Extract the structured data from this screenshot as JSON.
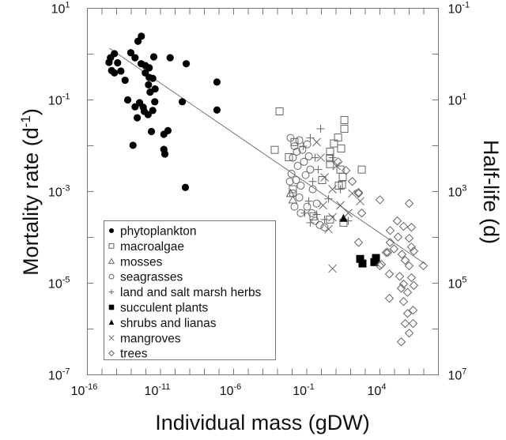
{
  "chart_data": {
    "type": "scatter",
    "xscale": "log10",
    "yscale": "log10",
    "note": "points given as [log10(mass gDW), log10(mortality d^-1)]",
    "xlabel": "Individual mass (gDW)",
    "ylabel": {
      "pre": "Mortality rate (d",
      "sup": "-1",
      "post": ")"
    },
    "y2label": "Half-life (d)",
    "xlim_log10": [
      -16,
      8
    ],
    "ylim_log10": [
      -7,
      1
    ],
    "x_tick_base": "10",
    "x_tick_exponents": [
      "-16",
      "-11",
      "-6",
      "-1",
      "4"
    ],
    "y_tick_exponents": [
      "1",
      "-1",
      "-3",
      "-5",
      "-7"
    ],
    "y2_tick_exponents": [
      "-1",
      "1",
      "3",
      "5",
      "7"
    ],
    "regression_line_log10": [
      [
        -14.5,
        0.13
      ],
      [
        7.14,
        -4.59
      ]
    ],
    "legend_position": "bottom-left",
    "series": [
      {
        "name": "phytoplankton",
        "marker": "filled-circle",
        "points": [
          [
            -12.31,
            0.39
          ],
          [
            -12.54,
            0.28
          ],
          [
            -14.15,
            0.01
          ],
          [
            -14.42,
            -0.08
          ],
          [
            -14.52,
            -0.18
          ],
          [
            -13.93,
            -0.19
          ],
          [
            -14.34,
            -0.36
          ],
          [
            -14.15,
            -0.41
          ],
          [
            -13.71,
            -0.37
          ],
          [
            -13.03,
            0.03
          ],
          [
            -12.74,
            -0.08
          ],
          [
            -12.32,
            -0.21
          ],
          [
            -12.04,
            -0.25
          ],
          [
            -11.77,
            -0.3
          ],
          [
            -12.04,
            -0.41
          ],
          [
            -11.77,
            -0.51
          ],
          [
            -11.53,
            -0.53
          ],
          [
            -11.82,
            -0.67
          ],
          [
            -11.37,
            -0.76
          ],
          [
            -11.71,
            -0.83
          ],
          [
            -11.46,
            -0.06
          ],
          [
            -10.34,
            -0.08
          ],
          [
            -9.24,
            -0.21
          ],
          [
            -7.14,
            -0.61
          ],
          [
            -7.14,
            -1.22
          ],
          [
            -9.51,
            -1.04
          ],
          [
            -13.42,
            -0.57
          ],
          [
            -13.24,
            -1.0
          ],
          [
            -12.74,
            -1.15
          ],
          [
            -12.43,
            -1.06
          ],
          [
            -12.18,
            -1.16
          ],
          [
            -12.11,
            -1.25
          ],
          [
            -11.85,
            -1.32
          ],
          [
            -11.53,
            -1.23
          ],
          [
            -11.39,
            -1.04
          ],
          [
            -12.59,
            -1.39
          ],
          [
            -11.62,
            -1.69
          ],
          [
            -10.77,
            -1.75
          ],
          [
            -10.49,
            -1.67
          ],
          [
            -12.88,
            -1.99
          ],
          [
            -10.77,
            -2.08
          ],
          [
            -10.7,
            -2.18
          ],
          [
            -9.3,
            -2.91
          ]
        ]
      },
      {
        "name": "macroalgae",
        "marker": "open-square",
        "points": [
          [
            -2.86,
            -1.25
          ],
          [
            -3.19,
            -2.09
          ],
          [
            1.57,
            -1.44
          ],
          [
            1.57,
            -1.63
          ],
          [
            1.14,
            -1.82
          ],
          [
            0.86,
            -1.95
          ],
          [
            1.35,
            -2.06
          ],
          [
            -1.84,
            -1.92
          ],
          [
            -2.22,
            -2.25
          ],
          [
            0.59,
            -2.13
          ],
          [
            0.59,
            -2.27
          ],
          [
            2.76,
            -2.52
          ],
          [
            1.46,
            -2.68
          ],
          [
            1.19,
            -2.87
          ],
          [
            -1.95,
            -2.95
          ],
          [
            0.05,
            -2.75
          ],
          [
            0.59,
            -2.4
          ],
          [
            1.41,
            -2.85
          ],
          [
            1.51,
            -3.68
          ],
          [
            0.59,
            -3.61
          ],
          [
            -0.54,
            -3.54
          ],
          [
            1.3,
            -2.52
          ]
        ]
      },
      {
        "name": "mosses",
        "marker": "open-triangle",
        "points": [
          [
            -1.95,
            -3.18
          ],
          [
            -2.11,
            -3.04
          ]
        ]
      },
      {
        "name": "seagrasses",
        "marker": "open-circle",
        "points": [
          [
            -2.11,
            -1.83
          ],
          [
            -1.84,
            -2.01
          ],
          [
            -1.51,
            -1.88
          ],
          [
            -1.3,
            -2.09
          ],
          [
            -0.97,
            -1.97
          ],
          [
            -1.95,
            -2.26
          ],
          [
            -1.62,
            -2.44
          ],
          [
            -1.19,
            -2.35
          ],
          [
            -0.86,
            -2.23
          ],
          [
            -2.05,
            -2.61
          ],
          [
            -1.73,
            -2.75
          ],
          [
            -1.41,
            -2.87
          ],
          [
            -1.08,
            -2.64
          ],
          [
            -1.95,
            -3.04
          ],
          [
            -1.51,
            -3.13
          ],
          [
            -0.76,
            -2.52
          ],
          [
            -0.59,
            -2.95
          ],
          [
            -0.97,
            -3.33
          ],
          [
            -0.65,
            -3.47
          ],
          [
            -0.43,
            -3.64
          ],
          [
            -0.11,
            -3.73
          ],
          [
            0.22,
            -3.78
          ],
          [
            -0.32,
            -3.26
          ],
          [
            -1.84,
            -3.33
          ],
          [
            -1.41,
            -3.47
          ],
          [
            -2.16,
            -2.78
          ],
          [
            -1.68,
            -2.13
          ]
        ]
      },
      {
        "name": "land and salt marsh herbs",
        "marker": "plus",
        "points": [
          [
            -0.05,
            -1.63
          ],
          [
            -0.76,
            -1.83
          ],
          [
            -0.43,
            -2.26
          ],
          [
            -0.22,
            -2.52
          ],
          [
            -0.59,
            -2.78
          ],
          [
            -0.86,
            -3.21
          ],
          [
            -1.14,
            -3.47
          ],
          [
            -0.32,
            -3.5
          ],
          [
            0.49,
            -3.16
          ],
          [
            1.3,
            -2.95
          ],
          [
            1.84,
            -3.64
          ],
          [
            -0.76,
            -3.68
          ],
          [
            0.22,
            -3.61
          ],
          [
            0.76,
            -2.26
          ],
          [
            -1.24,
            -2.01
          ]
        ]
      },
      {
        "name": "succulent plants",
        "marker": "filled-square",
        "points": [
          [
            2.65,
            -4.47
          ],
          [
            2.81,
            -4.57
          ],
          [
            3.73,
            -4.45
          ],
          [
            3.62,
            -4.54
          ]
        ]
      },
      {
        "name": "shrubs and lianas",
        "marker": "filled-triangle",
        "points": [
          [
            1.51,
            -3.59
          ]
        ]
      },
      {
        "name": "mangroves",
        "marker": "cross",
        "points": [
          [
            -0.32,
            -1.92
          ],
          [
            -0.05,
            -2.26
          ],
          [
            0.22,
            -2.69
          ],
          [
            0.76,
            -2.95
          ],
          [
            1.3,
            -3.3
          ],
          [
            1.84,
            -3.47
          ],
          [
            2.11,
            -3.04
          ],
          [
            0.76,
            -3.56
          ],
          [
            0.49,
            -3.82
          ],
          [
            0.11,
            -3.3
          ],
          [
            0.76,
            -4.68
          ],
          [
            2.65,
            -3.21
          ],
          [
            1.03,
            -2.44
          ]
        ]
      },
      {
        "name": "trees",
        "marker": "open-diamond",
        "points": [
          [
            2.54,
            -3.04
          ],
          [
            4.0,
            -3.18
          ],
          [
            6.0,
            -3.26
          ],
          [
            2.54,
            -4.11
          ],
          [
            5.19,
            -3.64
          ],
          [
            4.7,
            -3.85
          ],
          [
            5.62,
            -3.76
          ],
          [
            6.16,
            -3.78
          ],
          [
            5.24,
            -3.99
          ],
          [
            6.0,
            -4.02
          ],
          [
            4.7,
            -4.11
          ],
          [
            4.97,
            -4.25
          ],
          [
            6.16,
            -4.21
          ],
          [
            6.32,
            -4.3
          ],
          [
            5.51,
            -4.37
          ],
          [
            4.43,
            -4.33
          ],
          [
            4.11,
            -4.59
          ],
          [
            5.73,
            -4.5
          ],
          [
            6.0,
            -4.62
          ],
          [
            6.97,
            -4.62
          ],
          [
            4.65,
            -4.8
          ],
          [
            5.35,
            -4.85
          ],
          [
            6.16,
            -4.88
          ],
          [
            5.62,
            -5.02
          ],
          [
            6.32,
            -5.05
          ],
          [
            5.46,
            -5.11
          ],
          [
            5.89,
            -5.2
          ],
          [
            4.65,
            -5.33
          ],
          [
            5.62,
            -5.4
          ],
          [
            6.27,
            -5.59
          ],
          [
            5.89,
            -5.66
          ],
          [
            5.73,
            -5.88
          ],
          [
            6.27,
            -5.88
          ],
          [
            6.0,
            -6.09
          ],
          [
            5.46,
            -6.28
          ],
          [
            2.54,
            -3.02
          ],
          [
            2.76,
            -3.47
          ],
          [
            4.54,
            -4.33
          ],
          [
            4.0,
            -4.62
          ],
          [
            1.68,
            -2.54
          ],
          [
            2.11,
            -2.78
          ],
          [
            1.14,
            -2.35
          ]
        ]
      }
    ]
  }
}
